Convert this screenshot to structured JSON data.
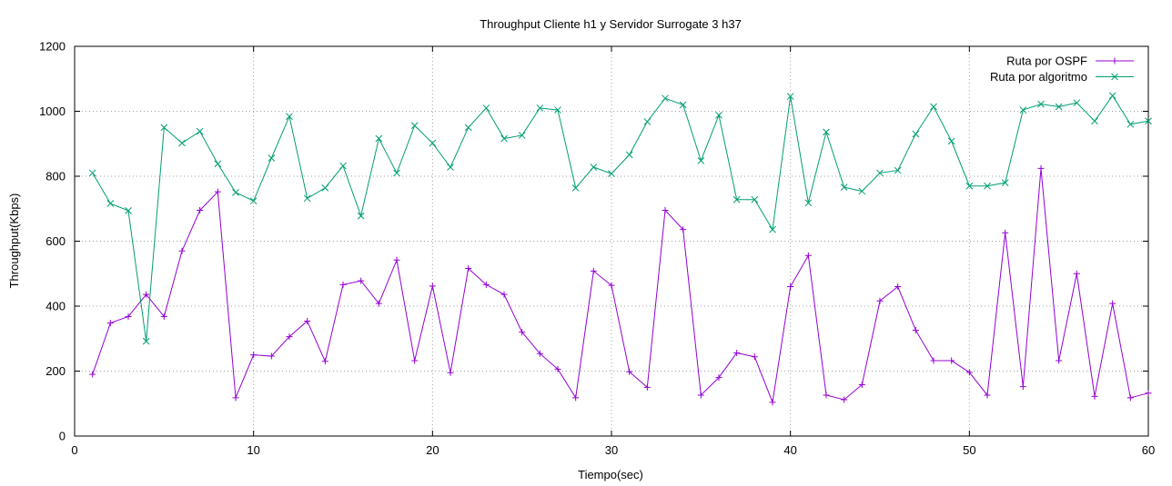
{
  "chart_data": {
    "type": "line",
    "title": "Throughput Cliente h1 y Servidor Surrogate 3 h37",
    "xlabel": "Tiempo(sec)",
    "ylabel": "Throughput(Kbps)",
    "xlim": [
      0,
      60
    ],
    "ylim": [
      0,
      1200
    ],
    "xticks": [
      0,
      10,
      20,
      30,
      40,
      50,
      60
    ],
    "yticks": [
      0,
      200,
      400,
      600,
      800,
      1000,
      1200
    ],
    "grid": true,
    "legend_position": "top-right",
    "x": [
      1,
      2,
      3,
      4,
      5,
      6,
      7,
      8,
      9,
      10,
      11,
      12,
      13,
      14,
      15,
      16,
      17,
      18,
      19,
      20,
      21,
      22,
      23,
      24,
      25,
      26,
      27,
      28,
      29,
      30,
      31,
      32,
      33,
      34,
      35,
      36,
      37,
      38,
      39,
      40,
      41,
      42,
      43,
      44,
      45,
      46,
      47,
      48,
      49,
      50,
      51,
      52,
      53,
      54,
      55,
      56,
      57,
      58,
      59,
      60
    ],
    "series": [
      {
        "name": "Ruta por OSPF",
        "color": "#9400d3",
        "marker": "plus",
        "values": [
          190,
          348,
          368,
          436,
          368,
          570,
          695,
          752,
          118,
          250,
          246,
          306,
          354,
          230,
          466,
          478,
          408,
          542,
          232,
          462,
          195,
          516,
          466,
          436,
          320,
          254,
          206,
          118,
          508,
          464,
          198,
          150,
          695,
          636,
          126,
          180,
          256,
          244,
          104,
          460,
          556,
          126,
          112,
          158,
          416,
          460,
          326,
          232,
          232,
          196,
          126,
          626,
          152,
          824,
          232,
          500,
          122,
          408,
          118,
          132
        ]
      },
      {
        "name": "Ruta por algoritmo",
        "color": "#009e73",
        "marker": "x",
        "values": [
          810,
          716,
          694,
          292,
          950,
          902,
          938,
          838,
          750,
          724,
          856,
          984,
          732,
          764,
          832,
          678,
          916,
          810,
          956,
          902,
          828,
          950,
          1010,
          916,
          926,
          1010,
          1004,
          764,
          828,
          808,
          866,
          968,
          1040,
          1020,
          848,
          988,
          728,
          728,
          636,
          1046,
          718,
          936,
          766,
          754,
          810,
          818,
          930,
          1014,
          908,
          770,
          770,
          780,
          1004,
          1022,
          1014,
          1026,
          970,
          1048,
          960,
          970
        ]
      }
    ]
  }
}
